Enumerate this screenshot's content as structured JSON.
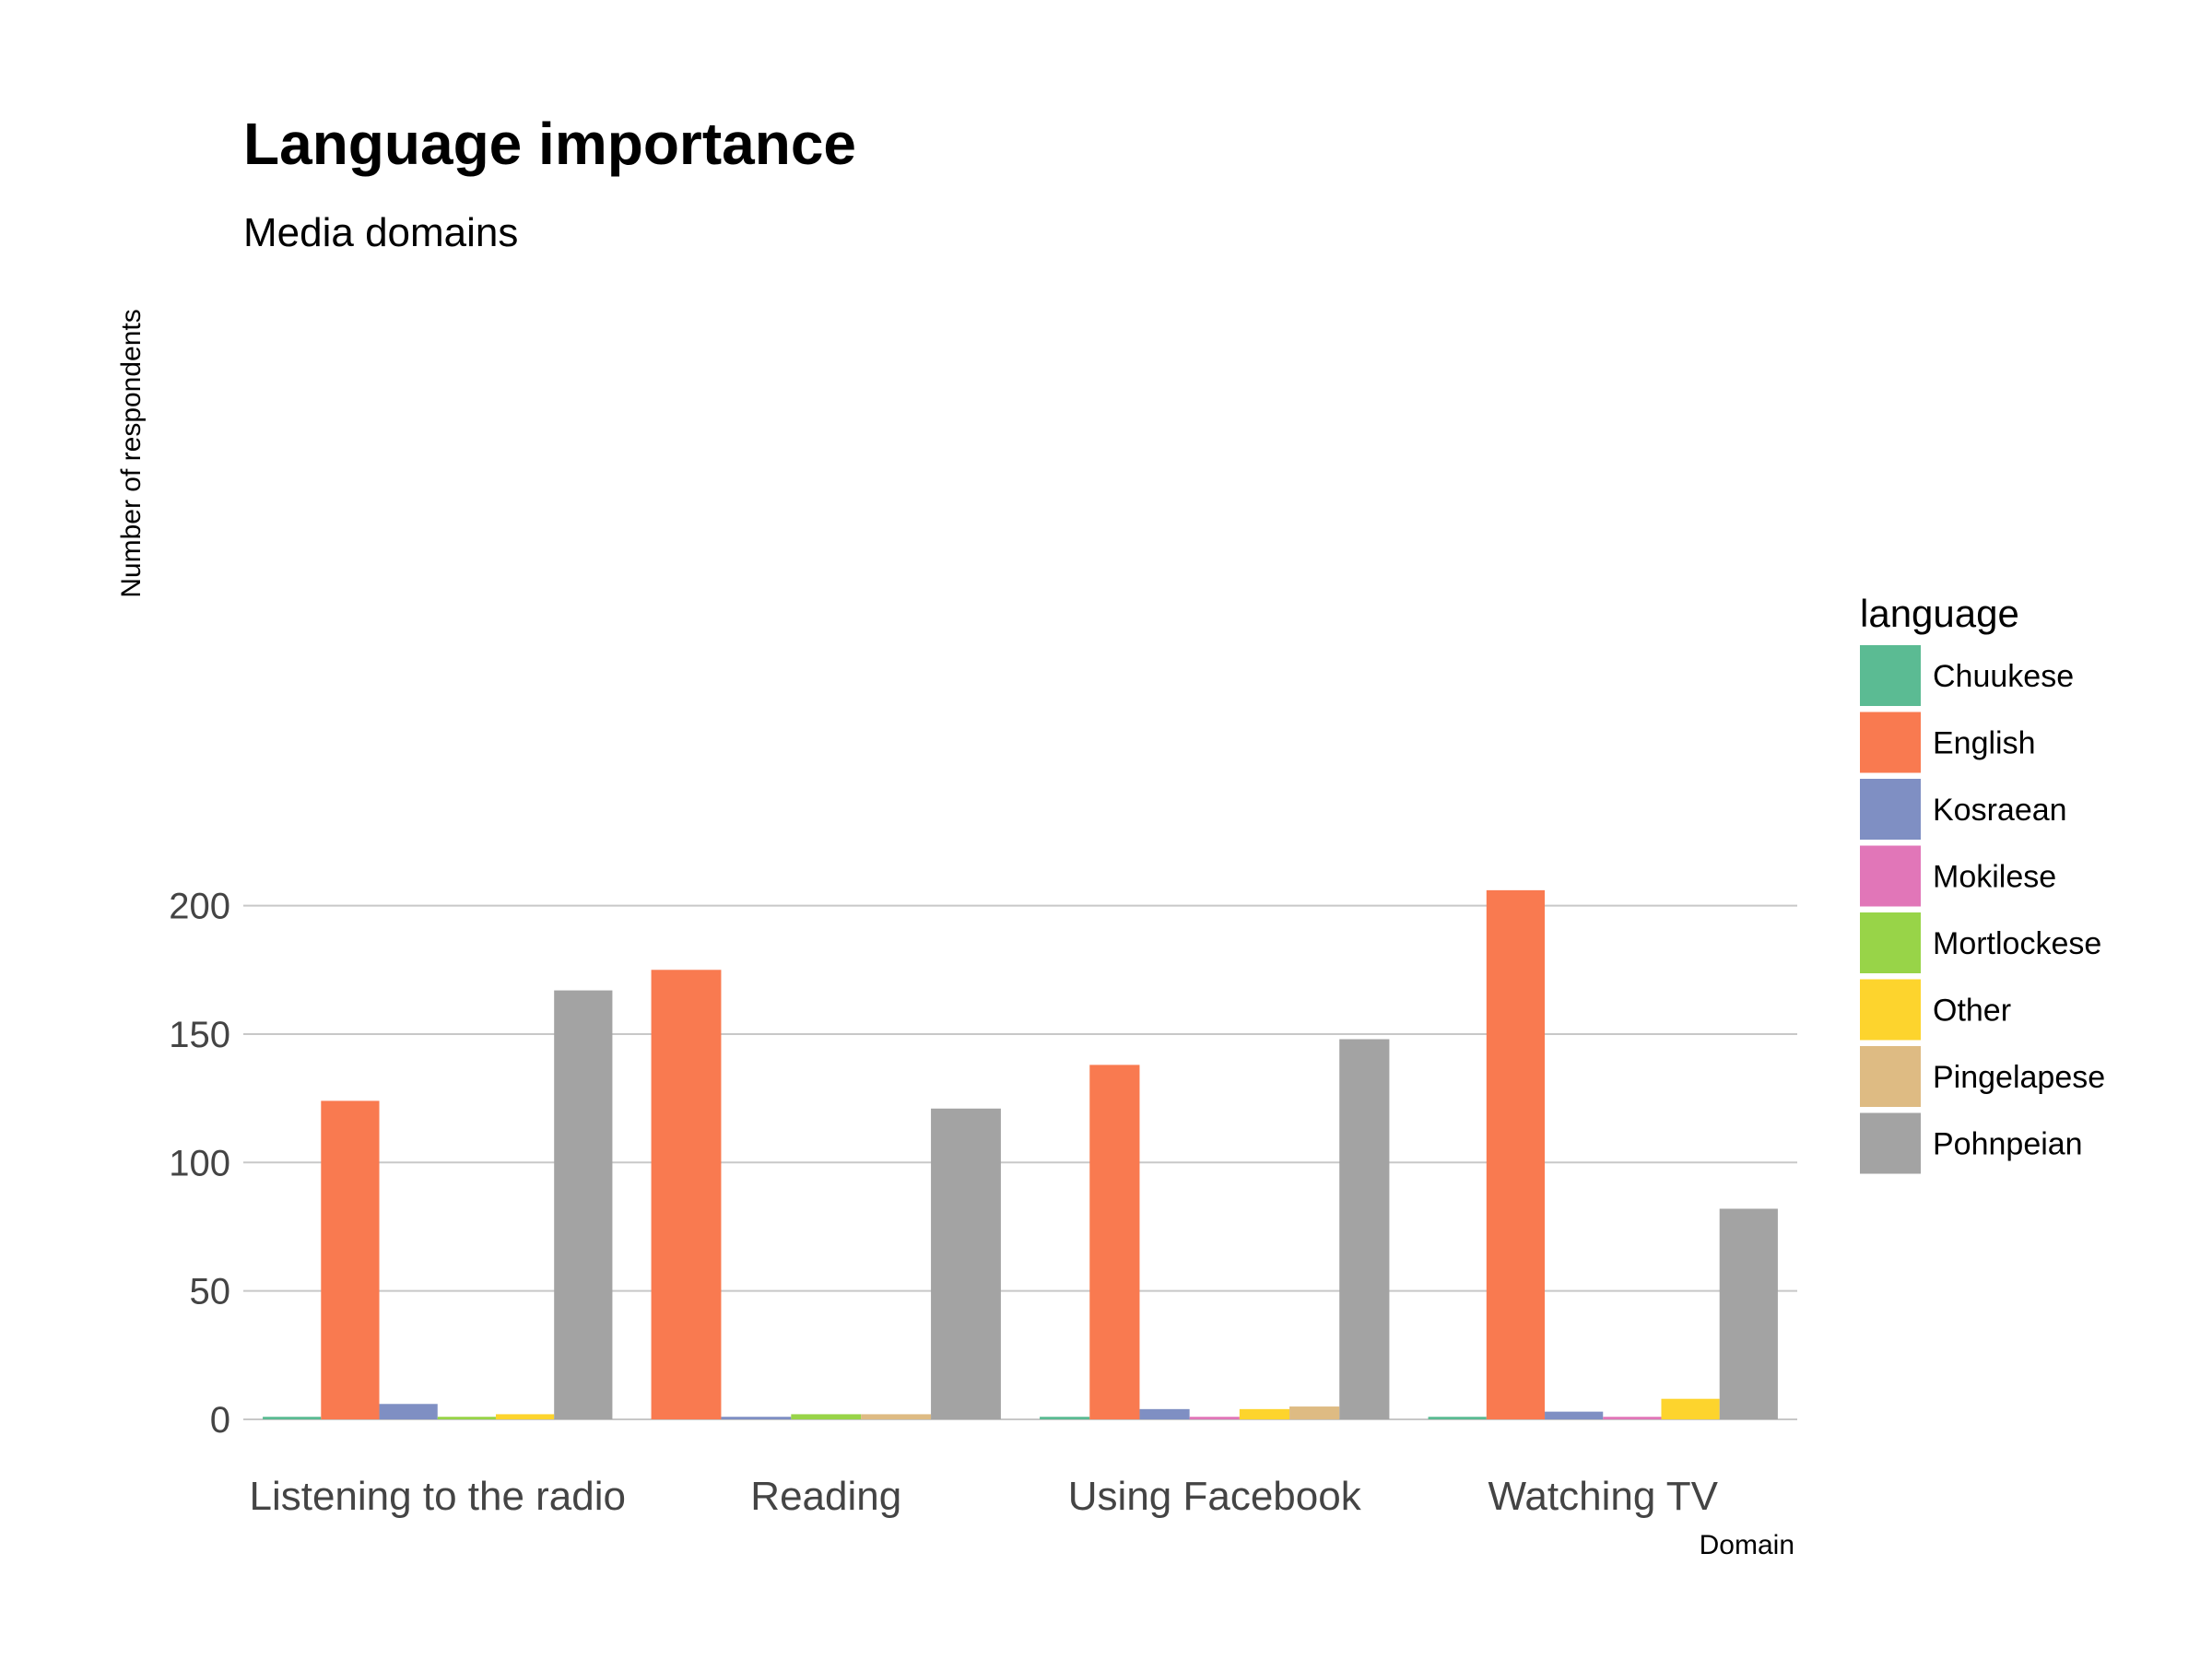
{
  "chart_data": {
    "type": "bar",
    "title": "Language importance",
    "subtitle": "Media domains",
    "xlabel": "Domain",
    "ylabel": "Number of respondents",
    "ylim": [
      0,
      220
    ],
    "yticks": [
      0,
      50,
      100,
      150,
      200
    ],
    "grid": true,
    "legend_position": "right",
    "legend_title": "language",
    "categories": [
      "Listening to the radio",
      "Reading",
      "Using Facebook",
      "Watching TV"
    ],
    "series": [
      {
        "name": "Chuukese",
        "color": "#5bbb93",
        "values": [
          1,
          null,
          1,
          1
        ]
      },
      {
        "name": "English",
        "color": "#f97a50",
        "values": [
          124,
          175,
          138,
          206
        ]
      },
      {
        "name": "Kosraean",
        "color": "#7f8fc3",
        "values": [
          6,
          1,
          4,
          3
        ]
      },
      {
        "name": "Mokilese",
        "color": "#e176b8",
        "values": [
          null,
          null,
          1,
          1
        ]
      },
      {
        "name": "Mortlockese",
        "color": "#98d448",
        "values": [
          1,
          2,
          null,
          null
        ]
      },
      {
        "name": "Other",
        "color": "#fdd42d",
        "values": [
          2,
          null,
          4,
          8
        ]
      },
      {
        "name": "Pingelapese",
        "color": "#debb83",
        "values": [
          null,
          2,
          5,
          null
        ]
      },
      {
        "name": "Pohnpeian",
        "color": "#a3a3a3",
        "values": [
          167,
          121,
          148,
          82
        ]
      }
    ]
  }
}
